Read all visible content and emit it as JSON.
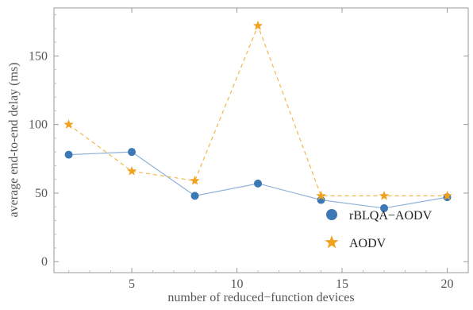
{
  "chart_data": {
    "type": "line",
    "xlabel": "number of reduced−function devices",
    "ylabel": "average end-to-end delay  (ms)",
    "xlim": [
      1.3,
      21.0
    ],
    "ylim": [
      -8,
      185
    ],
    "xticks": [
      5,
      10,
      15,
      20
    ],
    "xtick_labels": [
      "5",
      "10",
      "15",
      "20"
    ],
    "yticks": [
      0,
      50,
      100,
      150
    ],
    "ytick_labels": [
      "0",
      "50",
      "100",
      "150"
    ],
    "grid": false,
    "legend_placement": "bottom-right",
    "x": [
      2,
      5,
      8,
      11,
      14,
      17,
      20
    ],
    "series": [
      {
        "name": "rBLQA−AODV",
        "values": [
          78,
          80,
          48,
          57,
          45,
          39,
          47
        ],
        "marker": "circle",
        "line": "solid",
        "color": "#3c78b4",
        "line_color": "#8fb1d8"
      },
      {
        "name": "AODV",
        "values": [
          100,
          66,
          59,
          172,
          48,
          48,
          48
        ],
        "marker": "star",
        "line": "dashed",
        "color": "#f0a21e",
        "line_color": "#f3b64e"
      }
    ]
  }
}
